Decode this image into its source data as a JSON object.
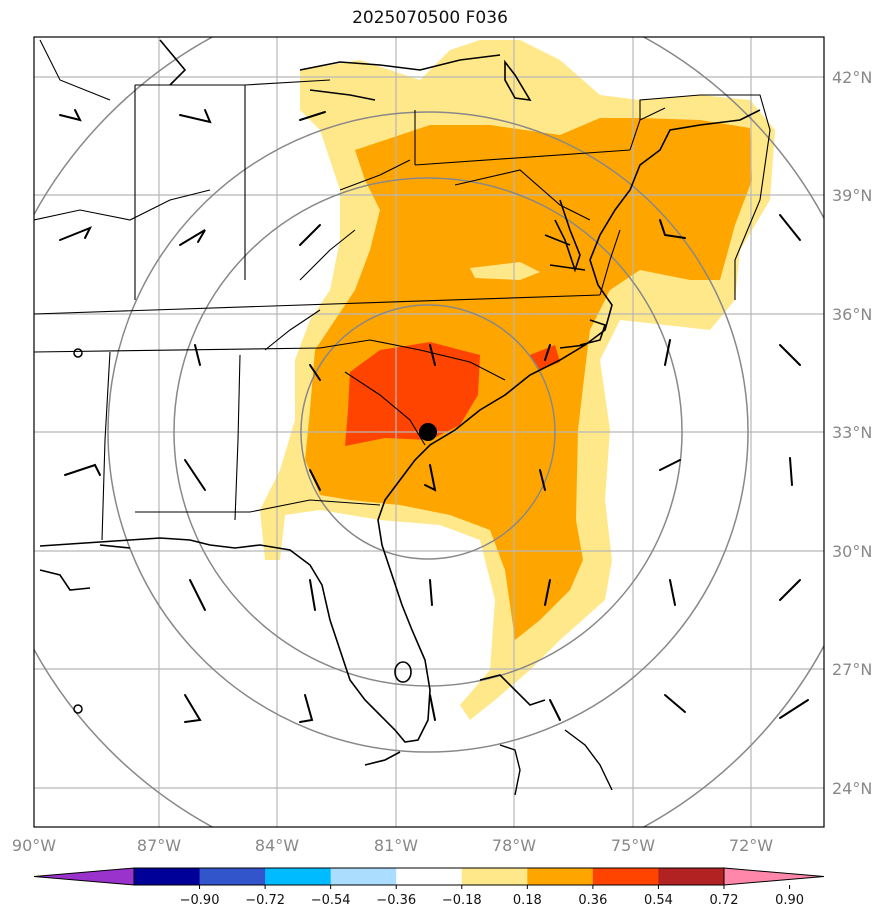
{
  "title": "2025070500 F036",
  "map": {
    "projection": "lat-lon",
    "lon_range": [
      -90.1,
      -70.1
    ],
    "lat_range": [
      23.0,
      43.0
    ],
    "lon_ticks": [
      "90°W",
      "87°W",
      "84°W",
      "81°W",
      "78°W",
      "75°W",
      "72°W"
    ],
    "lat_ticks": [
      "42°N",
      "39°N",
      "36°N",
      "33°N",
      "30°N",
      "27°N",
      "24°N"
    ],
    "center_marker": {
      "lon": -80.2,
      "lat": 33.0
    },
    "range_rings": "concentric circles around center marker",
    "grid": true
  },
  "colorbar": {
    "ticks": [
      "−0.90",
      "−0.72",
      "−0.54",
      "−0.36",
      "−0.18",
      "0.18",
      "0.36",
      "0.54",
      "0.72",
      "0.90"
    ],
    "colors": [
      "#9933cc",
      "#000099",
      "#3355cc",
      "#00bbff",
      "#aaddff",
      "#ffffff",
      "#ffe88a",
      "#ffa500",
      "#ff4400",
      "#b22222",
      "#ff88aa"
    ],
    "extend": "both"
  }
}
